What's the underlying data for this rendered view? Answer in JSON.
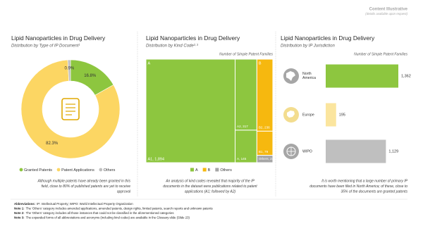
{
  "header": {
    "badge": "Content Illustrative",
    "badge_note": "(details available upon request)"
  },
  "chart_data": [
    {
      "type": "pie",
      "title": "Lipid Nanoparticles in Drug Delivery",
      "subtitle": "Distribution by Type of IP Document¹",
      "categories": [
        "Granted Patents",
        "Patent Applications",
        "Others"
      ],
      "values": [
        16.8,
        82.3,
        0.9
      ],
      "value_labels": [
        "16.8%",
        "82.3%",
        "0.9%"
      ],
      "colors": [
        "#8dc63f",
        "#fcd663",
        "#bfbfbf"
      ]
    },
    {
      "type": "treemap",
      "title": "Lipid Nanoparticles in Drug Delivery",
      "subtitle": "Distribution by Kind Code²·³",
      "value_axis_label": "Number of Simple Patent Families",
      "series": [
        {
          "name": "A",
          "color": "#8dc63f",
          "labels": [
            "A1, 1,894",
            "A2, 317",
            "A, 145"
          ],
          "values": [
            1894,
            317,
            145
          ]
        },
        {
          "name": "B",
          "color": "#f6b80f",
          "labels": [
            "B2, 236",
            "B1, 79"
          ],
          "values": [
            236,
            79
          ]
        },
        {
          "name": "Others",
          "color": "#a6a6a6",
          "labels": [
            "Others, 24"
          ],
          "values": [
            24
          ]
        }
      ]
    },
    {
      "type": "hbar",
      "title": "Lipid Nanoparticles in Drug Delivery",
      "subtitle": "Distribution by IP Jurisdiction",
      "value_axis_label": "Number of Simple Patent Families",
      "categories": [
        "North America",
        "Europe",
        "WIPO"
      ],
      "values": [
        1362,
        195,
        1129
      ],
      "value_labels": [
        "1,362",
        "195",
        "1,129"
      ],
      "colors": [
        "#8dc63f",
        "#fbe59e",
        "#bfbfbf"
      ]
    }
  ],
  "captions": [
    [
      "Although multiple patents have already been granted in this",
      "field, close to 80% of published patents are yet to receive",
      "approval"
    ],
    [
      "An analysis of kind codes revealed that majority of the IP",
      "documents in the dataset were publications related to patent",
      "applications (A1; followed by A2)"
    ],
    [
      "It is worth mentioning that a large number of primary IP",
      "documents have been filed in North America; of these, close to",
      "35% of the documents are granted patents"
    ]
  ],
  "notes": [
    {
      "label": "Abbreviations:",
      "text": "IP: Intellectual Property; WIPO: World Intellectual Property Organization"
    },
    {
      "label": "Note 1:",
      "text": "The 'Others' category includes amended applications, amended patents, design rights, limited patents, search reports and unknown patents"
    },
    {
      "label": "Note 2:",
      "text": "The 'Others' category includes all those instances that could not be classified in the aforementioned categories"
    },
    {
      "label": "Note 3:",
      "text": "The expanded forms of all abbreviations and acronyms (including kind codes) are available in the Glossary slide (Slide 23)"
    }
  ]
}
